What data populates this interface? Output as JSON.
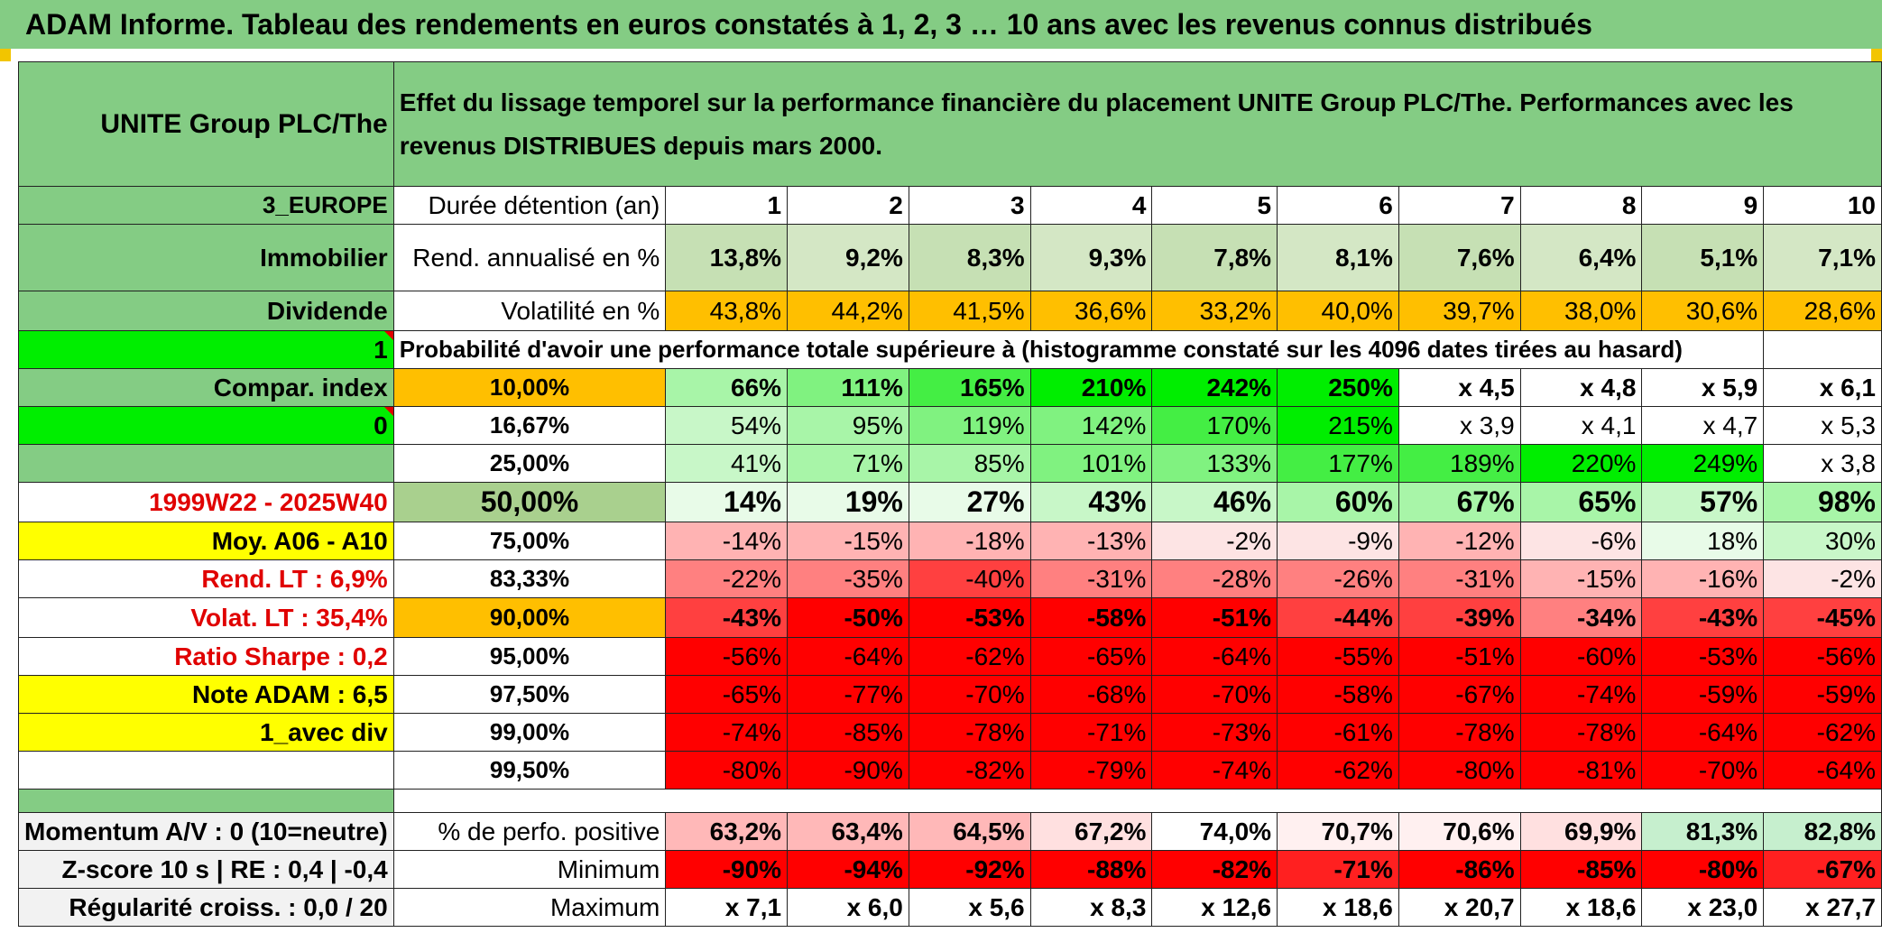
{
  "title": "ADAM Informe. Tableau des rendements en euros constatés à 1, 2, 3 … 10 ans avec les revenus connus distribués",
  "asset_name": "UNITE Group PLC/The",
  "description": "Effet du lissage temporel sur la performance financière du placement UNITE Group PLC/The. Performances avec les revenus DISTRIBUES depuis mars 2000.",
  "left_labels": {
    "region": "3_EUROPE",
    "sector": "Immobilier",
    "income_type": "Dividende",
    "index_flag": "1",
    "compar_index": "Compar. index",
    "zero_flag": "0",
    "period": "1999W22 - 2025W40",
    "moy": "Moy. A06 - A10",
    "rend_lt": "Rend. LT :    6,9%",
    "volat_lt": "Volat. LT :   35,4%",
    "ratio_sharpe": "Ratio Sharpe :    0,2",
    "note_adam": "Note ADAM : 6,5",
    "avec_div": "1_avec div",
    "momentum": "Momentum A/V : 0 (10=neutre)",
    "zscore": "Z-score 10 s | RE : 0,4 | -0,4",
    "regularite": "Régularité croiss. : 0,0 / 20"
  },
  "row_labels": {
    "duration": "Durée détention (an)",
    "rend": "Rend. annualisé en %",
    "vol": "Volatilité en %",
    "proba": "Probabilité d'avoir une performance totale supérieure à (histogramme constaté sur les 4096 dates tirées au hasard)",
    "pct_positive": "% de perfo. positive",
    "minimum": "Minimum",
    "maximum": "Maximum"
  },
  "years": [
    "1",
    "2",
    "3",
    "4",
    "5",
    "6",
    "7",
    "8",
    "9",
    "10"
  ],
  "rend": [
    "13,8%",
    "9,2%",
    "8,3%",
    "9,3%",
    "7,8%",
    "8,1%",
    "7,6%",
    "6,4%",
    "5,1%",
    "7,1%"
  ],
  "vol": [
    "43,8%",
    "44,2%",
    "41,5%",
    "36,6%",
    "33,2%",
    "40,0%",
    "39,7%",
    "38,0%",
    "30,6%",
    "28,6%"
  ],
  "quantiles": [
    {
      "label": "10,00%",
      "values": [
        "66%",
        "111%",
        "165%",
        "210%",
        "242%",
        "250%",
        "x 4,5",
        "x 4,8",
        "x 5,9",
        "x 6,1"
      ]
    },
    {
      "label": "16,67%",
      "values": [
        "54%",
        "95%",
        "119%",
        "142%",
        "170%",
        "215%",
        "x 3,9",
        "x 4,1",
        "x 4,7",
        "x 5,3"
      ]
    },
    {
      "label": "25,00%",
      "values": [
        "41%",
        "71%",
        "85%",
        "101%",
        "133%",
        "177%",
        "189%",
        "220%",
        "249%",
        "x 3,8"
      ]
    },
    {
      "label": "50,00%",
      "values": [
        "14%",
        "19%",
        "27%",
        "43%",
        "46%",
        "60%",
        "67%",
        "65%",
        "57%",
        "98%"
      ]
    },
    {
      "label": "75,00%",
      "values": [
        "-14%",
        "-15%",
        "-18%",
        "-13%",
        "-2%",
        "-9%",
        "-12%",
        "-6%",
        "18%",
        "30%"
      ]
    },
    {
      "label": "83,33%",
      "values": [
        "-22%",
        "-35%",
        "-40%",
        "-31%",
        "-28%",
        "-26%",
        "-31%",
        "-15%",
        "-16%",
        "-2%"
      ]
    },
    {
      "label": "90,00%",
      "values": [
        "-43%",
        "-50%",
        "-53%",
        "-58%",
        "-51%",
        "-44%",
        "-39%",
        "-34%",
        "-43%",
        "-45%"
      ]
    },
    {
      "label": "95,00%",
      "values": [
        "-56%",
        "-64%",
        "-62%",
        "-65%",
        "-64%",
        "-55%",
        "-51%",
        "-60%",
        "-53%",
        "-56%"
      ]
    },
    {
      "label": "97,50%",
      "values": [
        "-65%",
        "-77%",
        "-70%",
        "-68%",
        "-70%",
        "-58%",
        "-67%",
        "-74%",
        "-59%",
        "-59%"
      ]
    },
    {
      "label": "99,00%",
      "values": [
        "-74%",
        "-85%",
        "-78%",
        "-71%",
        "-73%",
        "-61%",
        "-78%",
        "-78%",
        "-64%",
        "-62%"
      ]
    },
    {
      "label": "99,50%",
      "values": [
        "-80%",
        "-90%",
        "-82%",
        "-79%",
        "-74%",
        "-62%",
        "-80%",
        "-81%",
        "-70%",
        "-64%"
      ]
    }
  ],
  "pct_positive": [
    "63,2%",
    "63,4%",
    "64,5%",
    "67,2%",
    "74,0%",
    "70,7%",
    "70,6%",
    "69,9%",
    "81,3%",
    "82,8%"
  ],
  "minimum": [
    "-90%",
    "-94%",
    "-92%",
    "-88%",
    "-82%",
    "-71%",
    "-86%",
    "-85%",
    "-80%",
    "-67%"
  ],
  "maximum": [
    "x 7,1",
    "x 6,0",
    "x 5,6",
    "x 8,3",
    "x 12,6",
    "x 18,6",
    "x 20,7",
    "x 18,6",
    "x 23,0",
    "x 27,7"
  ],
  "colors": {
    "header_green": "#84cc84",
    "bright_green": "#00ee00",
    "orange": "#ffbf00",
    "yellow": "#ffff00",
    "red": "#ff0000",
    "text_red": "#e00000"
  }
}
